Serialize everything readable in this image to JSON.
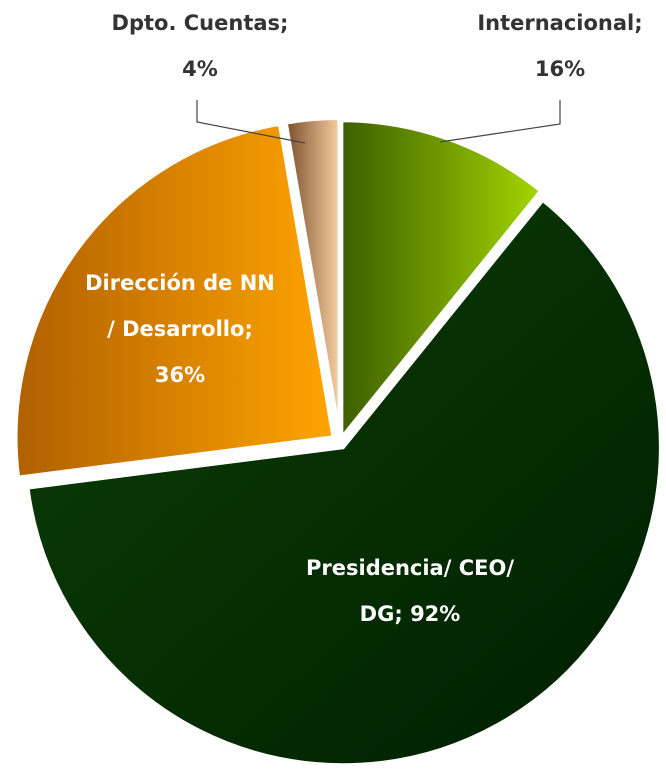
{
  "chart_data": {
    "type": "pie",
    "categories": [
      "Internacional",
      "Presidencia/ CEO/ DG",
      "Dirección de NN / Desarrollo",
      "Dpto. Cuentas"
    ],
    "values": [
      16,
      92,
      36,
      4
    ],
    "value_labels": [
      "16%",
      "92%",
      "36%",
      "4%"
    ],
    "label_separator": ";",
    "colors": [
      [
        "#3d5e00",
        "#a3d600"
      ],
      [
        "#001f00",
        "#0c3f06"
      ],
      [
        "#b06000",
        "#ffa400"
      ],
      [
        "#7a4e2a",
        "#f8cfa2"
      ]
    ]
  }
}
